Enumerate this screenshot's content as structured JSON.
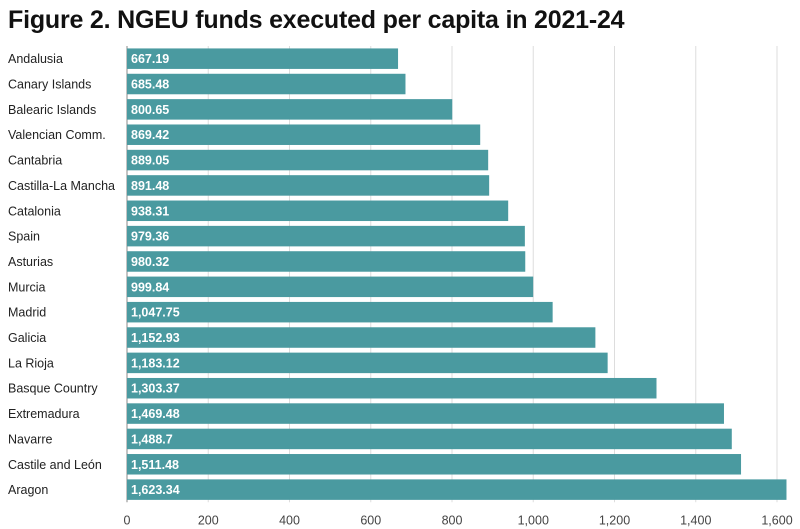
{
  "title": "Figure 2. NGEU funds executed per capita in 2021-24",
  "colors": {
    "bar": "#4a9aa0",
    "grid": "#dddddd",
    "axis": "#888888"
  },
  "chart_data": {
    "type": "bar",
    "orientation": "horizontal",
    "title": "Figure 2. NGEU funds executed per capita in 2021-24",
    "xlabel": "",
    "ylabel": "",
    "xlim": [
      0,
      1600
    ],
    "grid": true,
    "categories": [
      "Andalusia",
      "Canary Islands",
      "Balearic Islands",
      "Valencian Comm.",
      "Cantabria",
      "Castilla-La Mancha",
      "Catalonia",
      "Spain",
      "Asturias",
      "Murcia",
      "Madrid",
      "Galicia",
      "La Rioja",
      "Basque Country",
      "Extremadura",
      "Navarre",
      "Castile and León",
      "Aragon"
    ],
    "values": [
      667.19,
      685.48,
      800.65,
      869.42,
      889.05,
      891.48,
      938.31,
      979.36,
      980.32,
      999.84,
      1047.75,
      1152.93,
      1183.12,
      1303.37,
      1469.48,
      1488.7,
      1511.48,
      1623.34
    ],
    "value_labels": [
      "667.19",
      "685.48",
      "800.65",
      "869.42",
      "889.05",
      "891.48",
      "938.31",
      "979.36",
      "980.32",
      "999.84",
      "1,047.75",
      "1,152.93",
      "1,183.12",
      "1,303.37",
      "1,469.48",
      "1,488.7",
      "1,511.48",
      "1,623.34"
    ],
    "ticks": [
      0,
      200,
      400,
      600,
      800,
      1000,
      1200,
      1400,
      1600
    ],
    "tick_labels": [
      "0",
      "200",
      "400",
      "600",
      "800",
      "1,000",
      "1,200",
      "1,400",
      "1,600"
    ]
  }
}
